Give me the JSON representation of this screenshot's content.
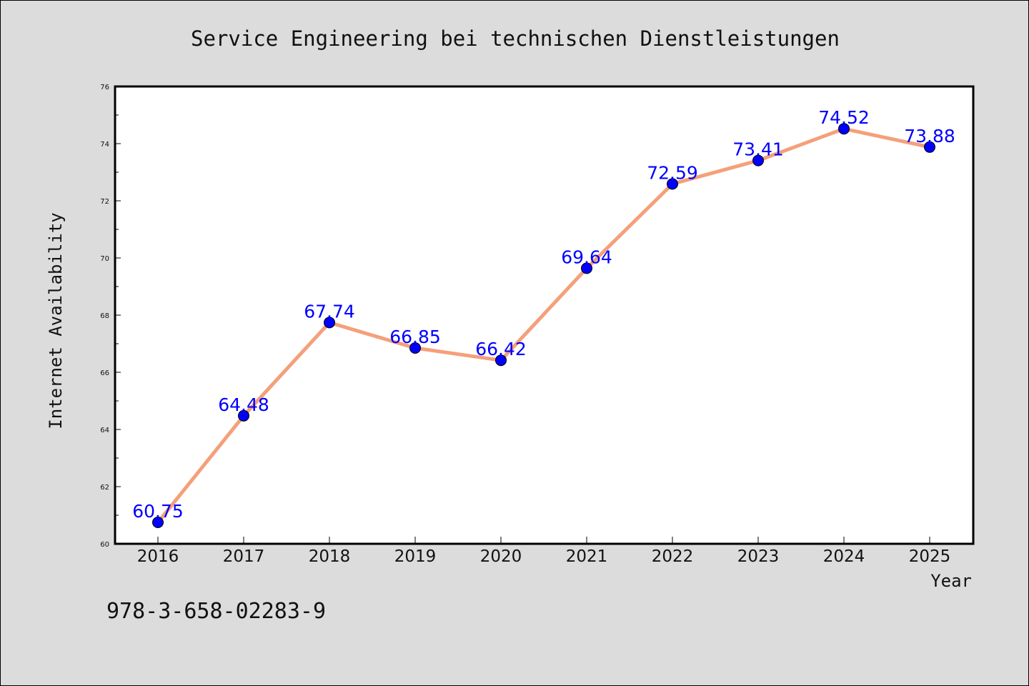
{
  "chart_data": {
    "type": "line",
    "title": "Service Engineering bei technischen Dienstleistungen",
    "xlabel": "Year",
    "ylabel": "Internet Availability",
    "categories": [
      "2016",
      "2017",
      "2018",
      "2019",
      "2020",
      "2021",
      "2022",
      "2023",
      "2024",
      "2025"
    ],
    "series": [
      {
        "values": [
          60.75,
          64.48,
          67.74,
          66.85,
          66.42,
          69.64,
          72.59,
          73.41,
          74.52,
          73.88
        ],
        "labels": [
          "60.75",
          "64.48",
          "67.74",
          "66.85",
          "66.42",
          "69.64",
          "72.59",
          "73.41",
          "74.52",
          "73.88"
        ],
        "line_color": "#f4a07a",
        "marker_color": "#0000ff"
      }
    ],
    "ylim": [
      60,
      76
    ],
    "yticks": [
      "60",
      "62",
      "64",
      "66",
      "68",
      "70",
      "72",
      "74",
      "76"
    ],
    "grid": false,
    "legend": "none"
  },
  "footer_text": "978-3-658-02283-9",
  "colors": {
    "background": "#dcdcdc",
    "plot_background": "#ffffff",
    "line": "#f4a07a",
    "marker": "#0000ff",
    "data_label": "#0000ff"
  }
}
